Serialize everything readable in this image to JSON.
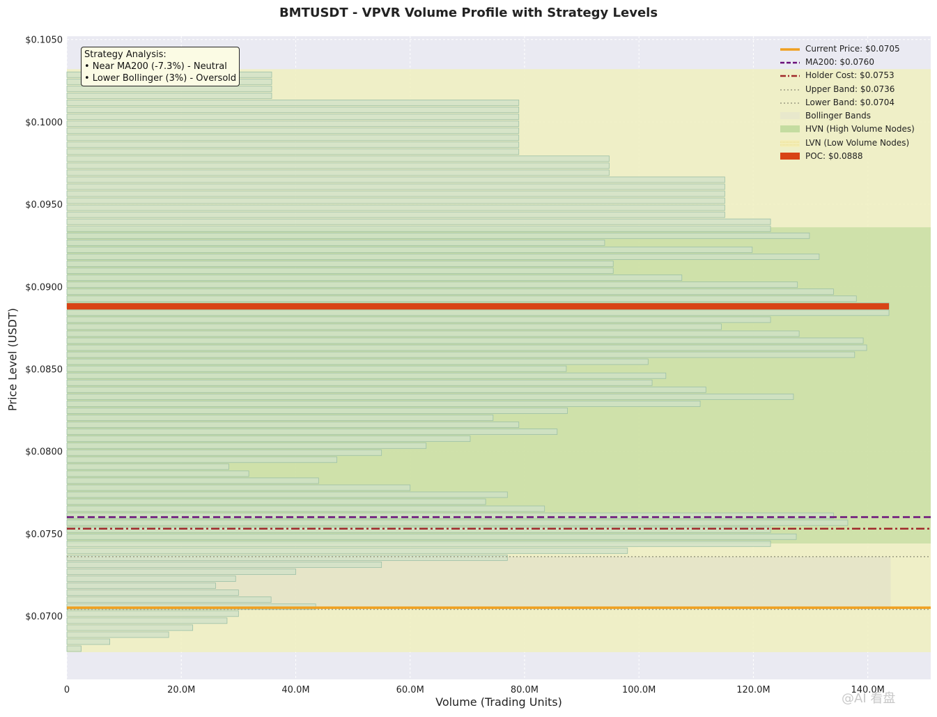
{
  "chart_data": {
    "type": "bar",
    "orientation": "horizontal",
    "title": "BMTUSDT - VPVR Volume Profile with Strategy Levels",
    "xlabel": "Volume (Trading Units)",
    "ylabel": "Price Level (USDT)",
    "xlim": [
      0,
      151
    ],
    "ylim": [
      0.06615,
      0.1052
    ],
    "x_unit": "M",
    "x_ticks": [
      0,
      20,
      40,
      60,
      80,
      100,
      120,
      140
    ],
    "x_tick_labels": [
      "0",
      "20.0M",
      "40.0M",
      "60.0M",
      "80.0M",
      "100.0M",
      "120.0M",
      "140.0M"
    ],
    "y_ticks": [
      0.07,
      0.075,
      0.08,
      0.085,
      0.09,
      0.095,
      0.1,
      0.105
    ],
    "y_tick_labels": [
      "$0.0700",
      "$0.0750",
      "$0.0800",
      "$0.0850",
      "$0.0900",
      "$0.0950",
      "$0.1000",
      "$0.1050"
    ],
    "grid": true,
    "bin_price_bottom": 0.0678,
    "bin_price_step": 0.000425,
    "volumes": [
      2.5,
      7.5,
      17.8,
      22,
      28,
      30,
      43.5,
      35.7,
      30,
      26,
      29.5,
      40,
      55,
      77,
      98,
      123,
      127.5,
      123,
      136.5,
      134,
      83.5,
      73.2,
      77,
      60,
      44,
      31.8,
      28.3,
      47.2,
      55,
      62.8,
      70.5,
      85.7,
      79,
      74.5,
      87.5,
      110.7,
      127,
      111.7,
      102.3,
      104.7,
      87.3,
      101.6,
      137.7,
      139.8,
      139.2,
      128,
      114.4,
      123,
      143.7,
      143.7,
      138,
      134,
      127.7,
      107.5,
      95.5,
      95.5,
      131.5,
      119.8,
      94,
      129.8,
      123,
      123,
      115,
      115,
      115,
      115,
      115,
      115,
      94.8,
      94.8,
      94.8,
      79,
      79,
      79,
      79,
      79,
      79,
      79,
      79,
      35.8,
      35.8,
      35.8,
      35.8
    ],
    "hvn_zone": [
      0.0744,
      0.0936
    ],
    "bollinger_zone": [
      0.0678,
      0.1032
    ],
    "inner_band_zone": {
      "price": [
        0.0704,
        0.0736
      ],
      "volume": [
        0,
        144
      ]
    },
    "poc": {
      "price": 0.0888,
      "volume": 143.7
    },
    "levels": [
      {
        "name": "Current Price",
        "value": 0.0705
      },
      {
        "name": "MA200",
        "value": 0.076
      },
      {
        "name": "Holder Cost",
        "value": 0.0753
      },
      {
        "name": "Upper Band",
        "value": 0.0736
      },
      {
        "name": "Lower Band",
        "value": 0.0704
      }
    ],
    "legend": [
      {
        "label": "Current Price: $0.0705",
        "style": "current"
      },
      {
        "label": "MA200: $0.0760",
        "style": "ma200"
      },
      {
        "label": "Holder Cost: $0.0753",
        "style": "holder"
      },
      {
        "label": "Upper Band: $0.0736",
        "style": "band"
      },
      {
        "label": "Lower Band: $0.0704",
        "style": "band"
      },
      {
        "label": "Bollinger Bands",
        "style": "bollinger"
      },
      {
        "label": "HVN (High Volume Nodes)",
        "style": "hvn"
      },
      {
        "label": "LVN (Low Volume Nodes)",
        "style": "lvn"
      },
      {
        "label": "POC: $0.0888",
        "style": "poc"
      }
    ],
    "legend_position": "top-right",
    "annotation": {
      "title": "Strategy Analysis:",
      "lines": [
        "• Near MA200 (-7.3%) - Neutral",
        "• Lower Bollinger (3%) - Oversold"
      ]
    }
  },
  "colors": {
    "bar_fill": "#cfe0c8",
    "bar_edge": "#9bbfa6",
    "hvn_fill": "#c4dca0",
    "bollinger_fill": "#f0f0c0",
    "inner_band_fill": "#e4e2c8",
    "poc": "#d84315",
    "current_price": "#f0a020",
    "ma200": "#6a0f7a",
    "holder_cost": "#a0282a",
    "band_line": "#9a9a80",
    "plot_bg": "#eaeaf2",
    "grid": "#ffffff"
  },
  "watermark": "@AI 看盘"
}
